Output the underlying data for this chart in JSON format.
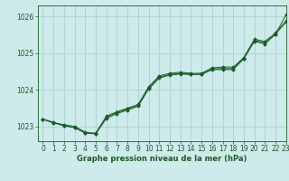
{
  "xlabel": "Graphe pression niveau de la mer (hPa)",
  "ylim": [
    1022.6,
    1026.3
  ],
  "xlim": [
    -0.5,
    23
  ],
  "yticks": [
    1023,
    1024,
    1025,
    1026
  ],
  "xticks": [
    0,
    1,
    2,
    3,
    4,
    5,
    6,
    7,
    8,
    9,
    10,
    11,
    12,
    13,
    14,
    15,
    16,
    17,
    18,
    19,
    20,
    21,
    22,
    23
  ],
  "bg_color": "#ceeaea",
  "grid_color": "#9ecece",
  "line_color": "#1a5c28",
  "marker_color": "#1a5c28",
  "series1": [
    1023.2,
    1023.1,
    1023.05,
    1023.0,
    1022.85,
    1022.8,
    1023.25,
    1023.38,
    1023.48,
    1023.58,
    1024.05,
    1024.35,
    1024.42,
    1024.45,
    1024.42,
    1024.42,
    1024.55,
    1024.55,
    1024.55,
    1024.85,
    1025.35,
    1025.28,
    1025.52,
    1026.05
  ],
  "series2": [
    1023.2,
    1023.12,
    1023.02,
    1022.97,
    1022.83,
    1022.82,
    1023.28,
    1023.4,
    1023.5,
    1023.6,
    1024.08,
    1024.38,
    1024.45,
    1024.48,
    1024.45,
    1024.45,
    1024.6,
    1024.62,
    1024.62,
    1024.88,
    1025.38,
    1025.32,
    1025.55,
    1025.88
  ],
  "series3": [
    1023.2,
    1023.1,
    1023.02,
    1022.98,
    1022.82,
    1022.8,
    1023.22,
    1023.35,
    1023.45,
    1023.55,
    1024.02,
    1024.32,
    1024.4,
    1024.43,
    1024.42,
    1024.43,
    1024.57,
    1024.58,
    1024.58,
    1024.85,
    1025.32,
    1025.25,
    1025.52,
    1025.85
  ],
  "tick_fontsize": 5.5,
  "xlabel_fontsize": 6.0
}
